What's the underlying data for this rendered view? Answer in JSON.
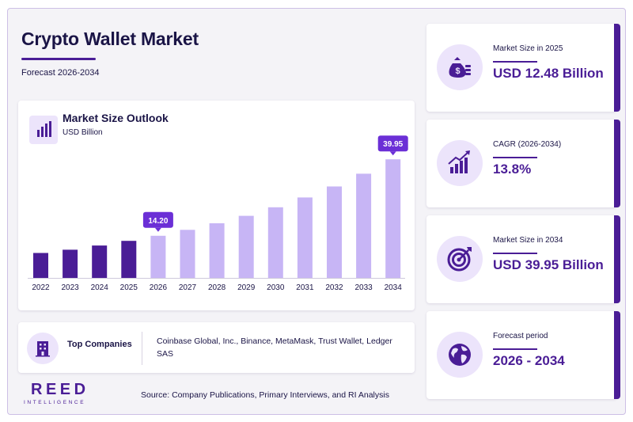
{
  "header": {
    "title": "Crypto Wallet Market",
    "subtitle": "Forecast 2026-2034"
  },
  "chart_card": {
    "title": "Market Size Outlook",
    "unit": "USD Billion",
    "icon": "bar-chart-icon"
  },
  "chart_data": {
    "type": "bar",
    "title": "Market Size Outlook",
    "ylabel": "USD Billion",
    "categories": [
      "2022",
      "2023",
      "2024",
      "2025",
      "2026",
      "2027",
      "2028",
      "2029",
      "2030",
      "2031",
      "2032",
      "2033",
      "2034"
    ],
    "values": [
      8.4,
      9.5,
      10.9,
      12.48,
      14.2,
      16.2,
      18.4,
      20.9,
      23.8,
      27.1,
      30.8,
      35.1,
      39.95
    ],
    "ylim": [
      0,
      40
    ],
    "historical_through": "2025",
    "annotations": [
      {
        "category": "2026",
        "label": "14.20"
      },
      {
        "category": "2034",
        "label": "39.95"
      }
    ],
    "grid": false,
    "colors": {
      "historical": "#4a1d96",
      "forecast": "#c7b5f5",
      "callout": "#6b2fd6"
    }
  },
  "companies": {
    "label": "Top Companies",
    "text": "Coinbase Global, Inc., Binance, MetaMask, Trust Wallet, Ledger SAS",
    "icon": "building-icon"
  },
  "kpis": [
    {
      "label": "Market Size in 2025",
      "value": "USD 12.48 Billion",
      "icon": "money-bag-icon"
    },
    {
      "label": "CAGR (2026-2034)",
      "value": "13.8%",
      "icon": "growth-chart-icon"
    },
    {
      "label": "Market Size in 2034",
      "value": "USD 39.95 Billion",
      "icon": "target-icon"
    },
    {
      "label": "Forecast period",
      "value": "2026 - 2034",
      "icon": "globe-icon"
    }
  ],
  "footer": {
    "logo_main": "REED",
    "logo_sub": "INTELLIGENCE",
    "source": "Source: Company Publications, Primary Interviews, and RI Analysis"
  },
  "colors": {
    "accent": "#4a1d96",
    "accent_light": "#ece4fb",
    "text": "#1a1446"
  }
}
